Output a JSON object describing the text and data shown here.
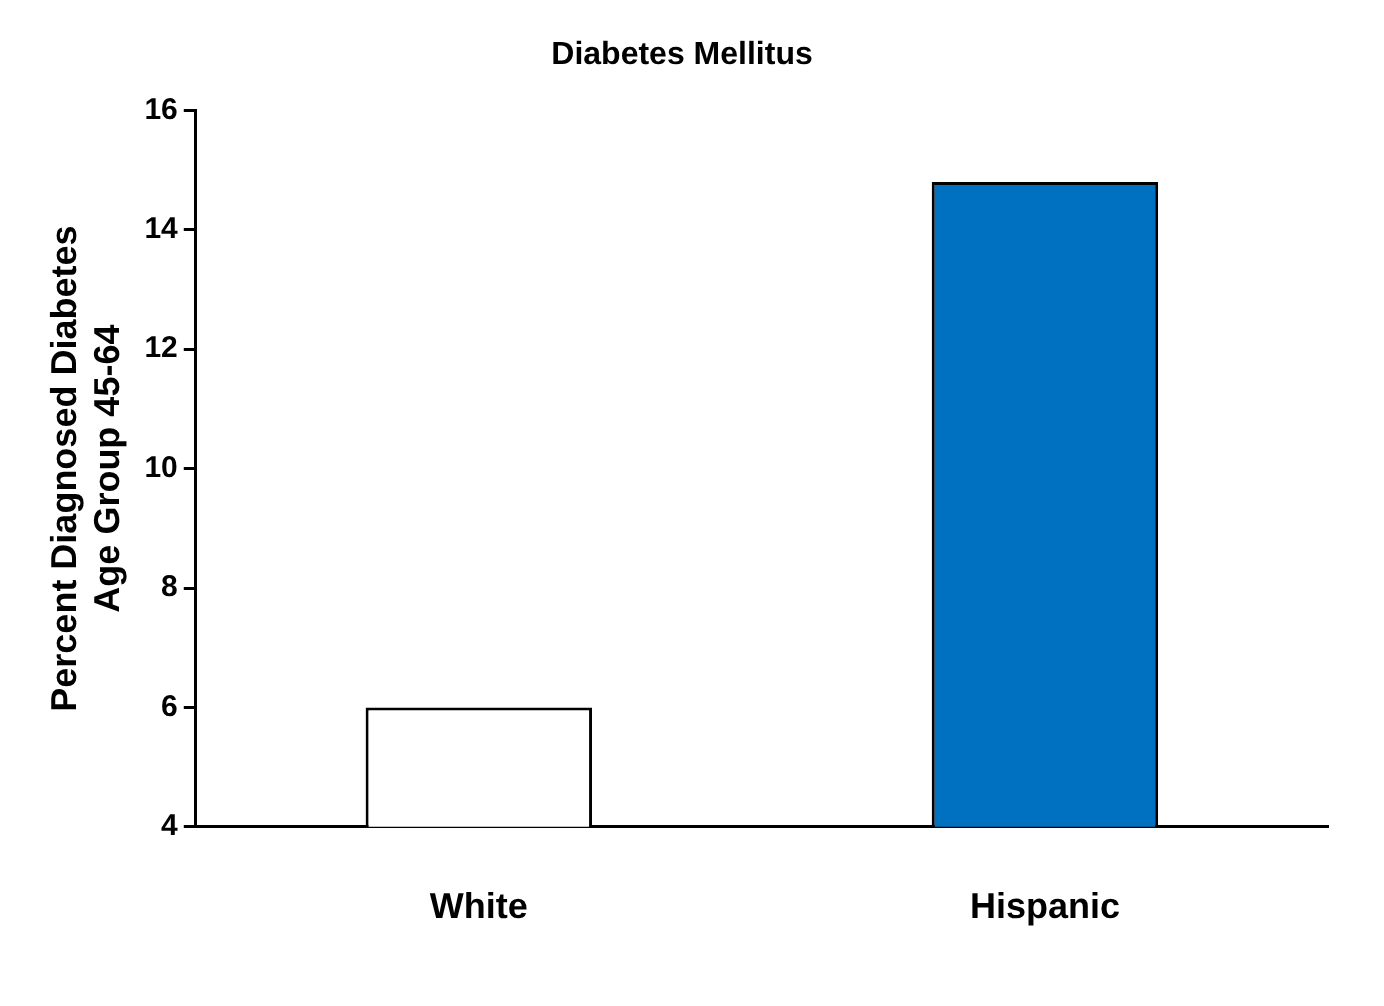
{
  "chart_data": {
    "type": "bar",
    "title": "Diabetes Mellitus",
    "ylabel": "Percent Diagnosed Diabetes\nAge Group 45-64",
    "categories": [
      "White",
      "Hispanic"
    ],
    "values": [
      6,
      14.8
    ],
    "colors": [
      "#ffffff",
      "#0070c0"
    ],
    "ylim": [
      4,
      16
    ],
    "yticks": [
      4,
      6,
      8,
      10,
      12,
      14,
      16
    ],
    "grid": false,
    "legend": false
  }
}
